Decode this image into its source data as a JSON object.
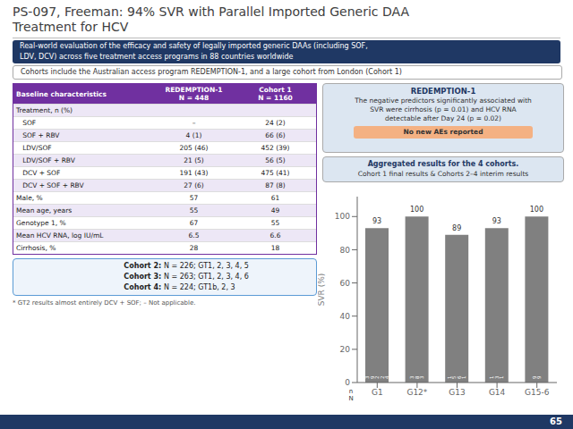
{
  "chart_data": {
    "type": "bar",
    "title": "PS-097, Freeman: 94% SVR with Parallel Imported Generic DAA\nTreatment for HCV",
    "categories": [
      "G1",
      "G12*",
      "G13",
      "G14",
      "G15-6"
    ],
    "values": [
      93,
      100,
      89,
      93,
      100
    ],
    "n_labels": [
      "3\n9\n2\n2\n4",
      "3\n8\n3",
      "1\n5\n6\n1",
      "1\n3\n1",
      "9\n9"
    ],
    "color": "#808080",
    "ylabel": "SVR (%)",
    "ylim": [
      0,
      112
    ],
    "yticks": [
      0,
      20,
      40,
      60,
      80,
      100
    ],
    "grid": false,
    "data_labels": true,
    "annotations": [
      "Real-world evaluation of the efficacy and safety of legally imported generic DAAs (including SOF,\nLDV, DCV) across five treatment access programs in 88 countries worldwide",
      "Cohorts include the Australian access program REDEMPTION-1, and a large cohort from London (Cohort 1)",
      "Cohort 2: N = 226; GT1, 2, 3, 4, 5",
      "Cohort 3: N = 263; GT1, 2, 3, 4, 6",
      "Cohort 4: N = 224; GT1b, 2, 3",
      "* GT2 results almost entirely DCV + SOF; – Not applicable.",
      "REDEMPTION-1",
      "The negative predictors significantly associated with\nSVR were cirrhosis (p = 0.01) and HCV RNA\ndetectable after Day 24 (p = 0.02)",
      "No new AEs reported",
      "Aggregated results for the 4 cohorts.",
      "Cohort 1 final results & Cohorts 2–4 interim results",
      "n\nN",
      "65"
    ],
    "table": {
      "headers": [
        "Baseline characteristics",
        "REDEMPTION-1\nN = 448",
        "Cohort 1\nN = 1160"
      ],
      "rows": [
        [
          "Treatment, n (%)",
          "",
          ""
        ],
        [
          "   SOF",
          "–",
          "24 (2)"
        ],
        [
          "   SOF + RBV",
          "4 (1)",
          "66 (6)"
        ],
        [
          "   LDV/SOF",
          "205 (46)",
          "452 (39)"
        ],
        [
          "   LDV/SOF + RBV",
          "21 (5)",
          "56 (5)"
        ],
        [
          "   DCV + SOF",
          "191 (43)",
          "475 (41)"
        ],
        [
          "   DCV + SOF + RBV",
          "27 (6)",
          "87 (8)"
        ],
        [
          "Male, %",
          "57",
          "61"
        ],
        [
          "Mean age, years",
          "55",
          "49"
        ],
        [
          "Genotype 1, %",
          "67",
          "55"
        ],
        [
          "Mean HCV RNA, log IU/mL",
          "6.5",
          "6.6"
        ],
        [
          "Cirrhosis, %",
          "28",
          "18"
        ]
      ]
    }
  }
}
